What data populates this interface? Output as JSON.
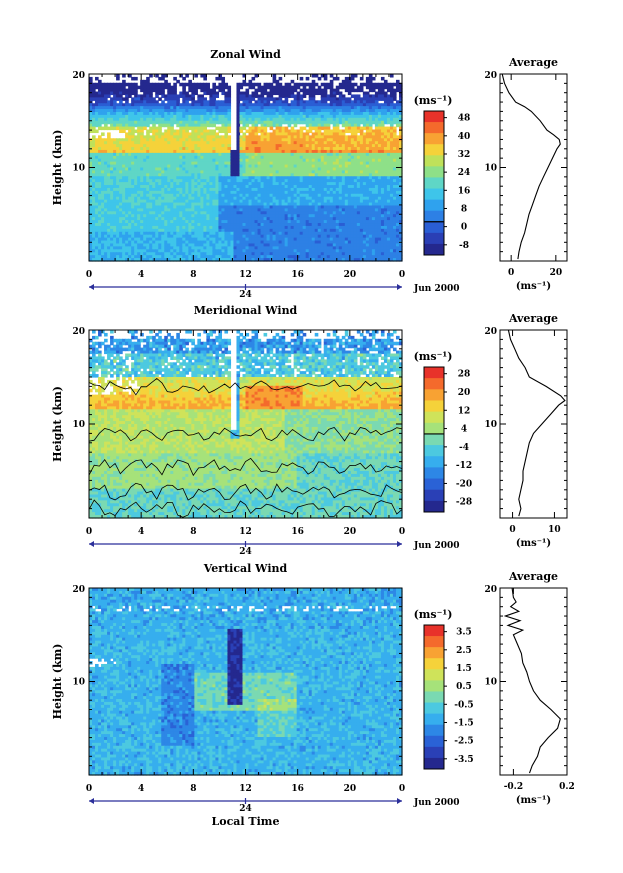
{
  "chart_data": [
    {
      "type": "heatmap",
      "title": "Zonal Wind",
      "xlabel": "",
      "ylabel": "Height (km)",
      "ylim": [
        0,
        20
      ],
      "y_ticks": [
        "10",
        "20"
      ],
      "x_ticks": [
        "0",
        "4",
        "8",
        "12",
        "16",
        "20",
        "0"
      ],
      "date_marker": "24",
      "date_label": "Jun 2000",
      "colorbar": {
        "unit_label": "(ms⁻¹)",
        "labels": [
          "48",
          "40",
          "32",
          "24",
          "16",
          "8",
          "0",
          "-8"
        ],
        "colors": [
          "#e8322a",
          "#f46a2c",
          "#f8a233",
          "#f5d23a",
          "#bfe15a",
          "#8ee088",
          "#5fd6c6",
          "#3ec5ea",
          "#2fa2ee",
          "#2d80e5",
          "#2a5ed4",
          "#2a3fb5",
          "#24288e"
        ],
        "zero_line_index": 10
      },
      "side_panel": {
        "title": "Average",
        "xlabel": "(ms⁻¹)",
        "x_ticks": [
          "0",
          "20"
        ],
        "xlim": [
          -5,
          25
        ],
        "profile_heights": [
          0.2,
          1,
          2,
          3,
          4,
          5,
          6,
          7,
          8,
          9,
          10,
          11,
          12,
          12.5,
          13,
          13.5,
          14,
          15,
          16,
          16.5,
          17,
          18,
          19,
          20
        ],
        "profile_values": [
          3,
          3.5,
          4.5,
          6,
          7,
          8,
          9.5,
          11,
          12.5,
          14.5,
          16.5,
          18.5,
          20.5,
          22,
          21.5,
          19,
          16,
          13,
          9,
          6,
          2,
          -1,
          -3,
          -4
        ]
      }
    },
    {
      "type": "heatmap",
      "title": "Meridional Wind",
      "xlabel": "",
      "ylabel": "Height (km)",
      "ylim": [
        0,
        20
      ],
      "y_ticks": [
        "10",
        "20"
      ],
      "x_ticks": [
        "0",
        "4",
        "8",
        "12",
        "16",
        "20",
        "0"
      ],
      "date_marker": "24",
      "date_label": "Jun 2000",
      "colorbar": {
        "unit_label": "(ms⁻¹)",
        "labels": [
          "28",
          "20",
          "12",
          "4",
          "-4",
          "-12",
          "-20",
          "-28"
        ],
        "colors": [
          "#e8322a",
          "#f46a2c",
          "#f8a233",
          "#f5d23a",
          "#cfe35a",
          "#a6e27a",
          "#7ad9b2",
          "#4cc9e0",
          "#36aeee",
          "#2d87e6",
          "#2a62d6",
          "#2a40b6",
          "#24288e"
        ],
        "zero_line_index": 6
      },
      "side_panel": {
        "title": "Average",
        "xlabel": "(ms⁻¹)",
        "x_ticks": [
          "0",
          "10"
        ],
        "xlim": [
          -3,
          13
        ],
        "profile_heights": [
          0.2,
          1,
          2,
          3,
          4,
          5,
          6,
          7,
          8,
          9,
          10,
          11,
          12,
          12.5,
          13,
          14,
          15,
          16,
          17,
          18,
          19,
          20
        ],
        "profile_values": [
          1.5,
          2,
          1.5,
          2,
          2.5,
          2.5,
          3,
          3.5,
          4,
          5,
          7,
          9,
          11,
          12.5,
          11.5,
          8,
          4,
          3,
          1.5,
          0.5,
          -0.5,
          -1
        ]
      }
    },
    {
      "type": "heatmap",
      "title": "Vertical Wind",
      "xlabel": "Local Time",
      "ylabel": "Height (km)",
      "ylim": [
        0,
        20
      ],
      "y_ticks": [
        "10",
        "20"
      ],
      "x_ticks": [
        "0",
        "4",
        "8",
        "12",
        "16",
        "20",
        "0"
      ],
      "date_marker": "24",
      "date_label": "Jun 2000",
      "colorbar": {
        "unit_label": "(ms⁻¹)",
        "labels": [
          "3.5",
          "2.5",
          "1.5",
          "0.5",
          "-0.5",
          "-1.5",
          "-2.5",
          "-3.5"
        ],
        "colors": [
          "#e8322a",
          "#f46a2c",
          "#f8a233",
          "#f5d23a",
          "#cfe35a",
          "#a6e27a",
          "#7ad9b2",
          "#4cc9e0",
          "#36aeee",
          "#2d87e6",
          "#2a62d6",
          "#2a40b6",
          "#24288e"
        ],
        "zero_line_index": -1
      },
      "side_panel": {
        "title": "Average",
        "xlabel": "(ms⁻¹)",
        "x_ticks": [
          "-0.2",
          "0.2"
        ],
        "xlim": [
          -0.3,
          0.2
        ],
        "profile_heights": [
          0.2,
          1,
          2,
          3,
          4,
          5,
          6,
          7,
          8,
          9,
          10,
          11,
          12,
          13,
          14,
          15,
          15.5,
          16,
          16.5,
          17,
          17.5,
          18,
          18.5,
          19,
          20
        ],
        "profile_values": [
          -0.08,
          -0.06,
          -0.02,
          0.0,
          0.06,
          0.13,
          0.15,
          0.08,
          0.0,
          -0.05,
          -0.08,
          -0.1,
          -0.13,
          -0.14,
          -0.17,
          -0.2,
          -0.13,
          -0.24,
          -0.15,
          -0.26,
          -0.16,
          -0.22,
          -0.18,
          -0.2,
          -0.21
        ]
      }
    }
  ]
}
